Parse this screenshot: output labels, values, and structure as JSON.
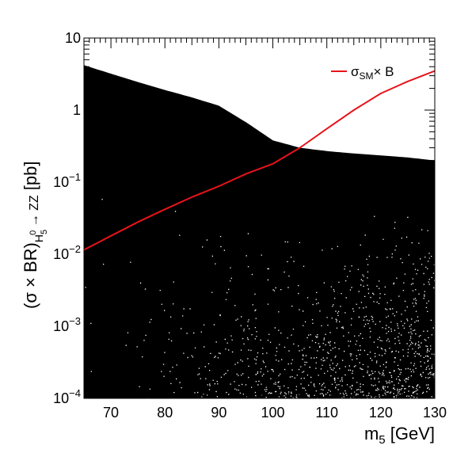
{
  "chart_data": {
    "type": "area",
    "x_range": [
      65,
      130
    ],
    "y_range": [
      0.0001,
      10
    ],
    "y_scale": "log",
    "x_ticks": [
      70,
      80,
      90,
      100,
      110,
      120,
      130
    ],
    "y_ticks": [
      {
        "value": 0.0001,
        "base": "10",
        "exp": "−4"
      },
      {
        "value": 0.001,
        "base": "10",
        "exp": "−3"
      },
      {
        "value": 0.01,
        "base": "10",
        "exp": "−2"
      },
      {
        "value": 0.1,
        "base": "10",
        "exp": "−1"
      },
      {
        "value": 1,
        "base": "1",
        "exp": ""
      },
      {
        "value": 10,
        "base": "10",
        "exp": ""
      }
    ],
    "xlabel": {
      "main": "m",
      "sub": "5",
      "unit": " [GeV]"
    },
    "ylabel": {
      "pre": "(σ × BR)",
      "sub": "H",
      "subsub": "5",
      "sup": "0",
      "arrow": " → ZZ",
      "unit": "  [pb]"
    },
    "legend": {
      "main": "σ",
      "sub": "SM",
      "rest": "× B",
      "color": "#e8131a",
      "position": "top-right"
    },
    "series": [
      {
        "kind": "scan-points-upper-envelope",
        "color": "#000000",
        "x": [
          65,
          70,
          75,
          80,
          85,
          90,
          95,
          100,
          105,
          110,
          115,
          120,
          125,
          130
        ],
        "y": [
          4.2,
          3.2,
          2.45,
          1.9,
          1.5,
          1.15,
          0.68,
          0.38,
          0.3,
          0.27,
          0.25,
          0.235,
          0.22,
          0.2
        ]
      },
      {
        "name": "σSM× B",
        "kind": "line",
        "color": "#e8131a",
        "x": [
          65,
          70,
          75,
          80,
          85,
          90,
          95,
          100,
          105,
          110,
          115,
          120,
          125,
          130
        ],
        "y": [
          0.0115,
          0.018,
          0.028,
          0.042,
          0.062,
          0.088,
          0.13,
          0.18,
          0.3,
          0.55,
          1.0,
          1.7,
          2.5,
          3.5
        ]
      }
    ]
  }
}
